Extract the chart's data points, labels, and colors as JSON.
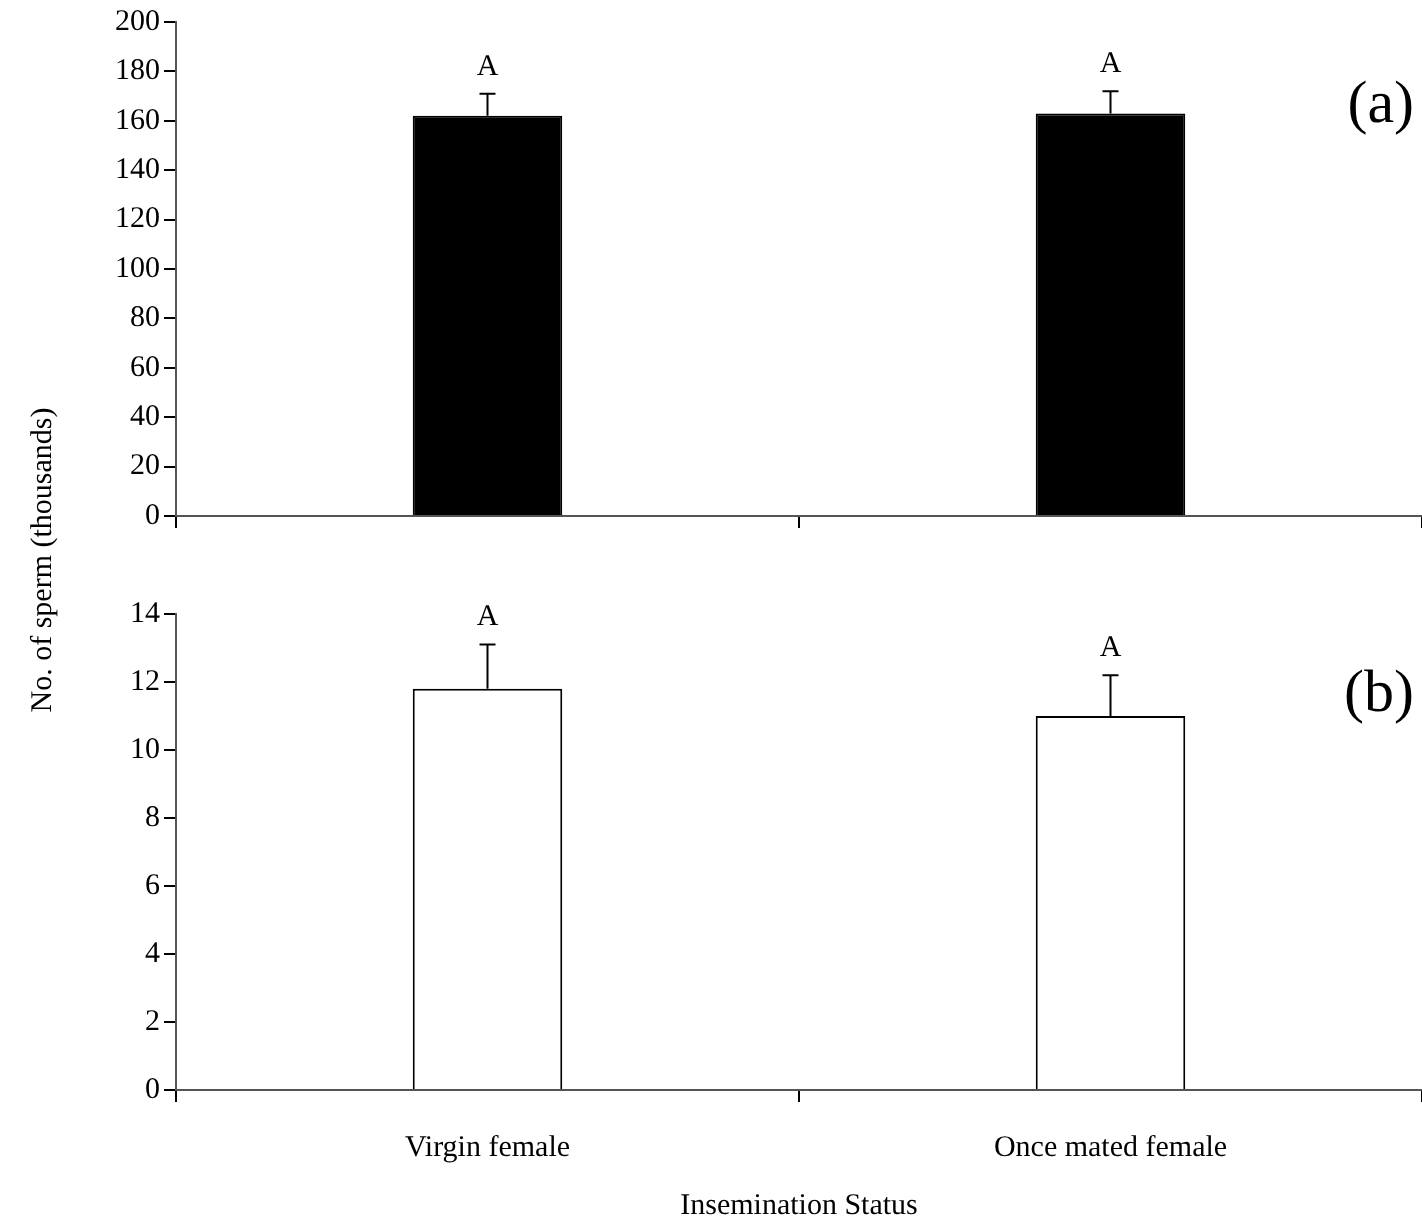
{
  "chart_data": [
    {
      "type": "bar",
      "ylabel": "No. of sperm (thousands)",
      "categories": [
        null,
        null
      ],
      "values": [
        162,
        163
      ],
      "errors": [
        [
          162,
          171
        ],
        [
          163,
          172
        ]
      ],
      "color": "#000000",
      "ylim": [
        0,
        200
      ],
      "yticks": [
        0,
        20,
        40,
        60,
        80,
        100,
        120,
        140,
        160,
        180,
        200
      ],
      "tick_labels": "y",
      "annotations": [
        "A",
        "A",
        "(a)"
      ]
    },
    {
      "type": "bar",
      "xlabel": "Insemination Status",
      "categories": [
        "Virgin female",
        "Once mated female"
      ],
      "values": [
        11.8,
        11.0
      ],
      "errors": [
        [
          11.8,
          13.1
        ],
        [
          11.0,
          12.2
        ]
      ],
      "color": "#ffffff",
      "ylim": [
        0,
        14
      ],
      "yticks": [
        0,
        2,
        4,
        6,
        8,
        10,
        12,
        14
      ],
      "annotations": [
        "A",
        "A",
        "(b)"
      ]
    }
  ]
}
